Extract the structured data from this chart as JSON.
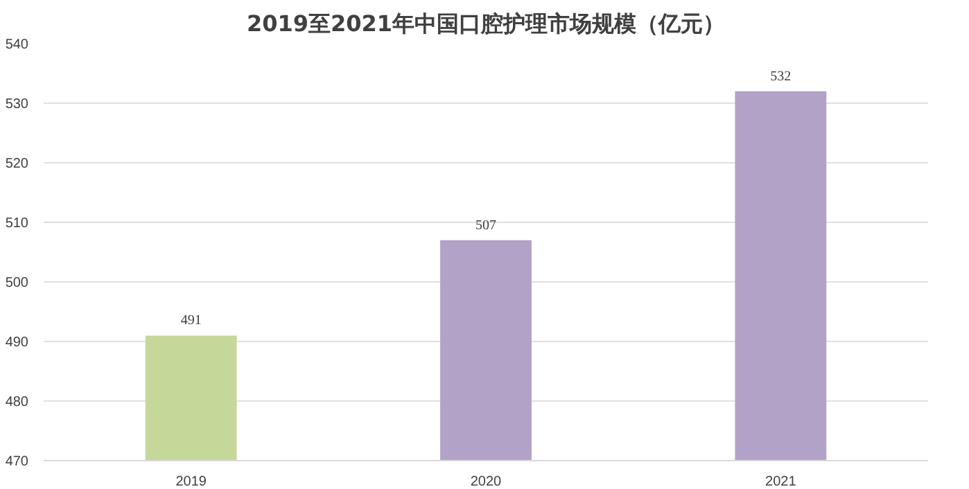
{
  "chart_data": {
    "type": "bar",
    "title": "2019至2021年中国口腔护理市场规模（亿元）",
    "categories": [
      "2019",
      "2020",
      "2021"
    ],
    "values": [
      491,
      507,
      532
    ],
    "colors": [
      "#c5d89a",
      "#b3a2c7",
      "#b3a2c7"
    ],
    "ylim": [
      470,
      540
    ],
    "yticks": [
      470,
      480,
      490,
      500,
      510,
      520,
      530,
      540
    ],
    "grid": "y",
    "data_labels": true
  }
}
